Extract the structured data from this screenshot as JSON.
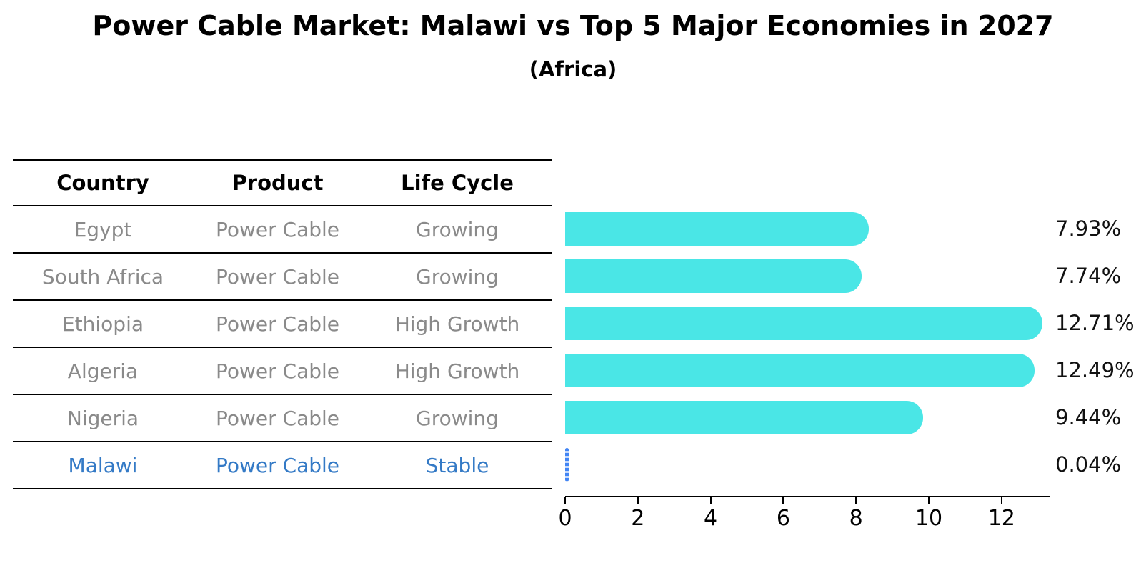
{
  "title": "Power Cable Market: Malawi vs Top 5 Major Economies in 2027",
  "subtitle": "(Africa)",
  "table": {
    "headers": {
      "country": "Country",
      "product": "Product",
      "life_cycle": "Life Cycle"
    },
    "rows": [
      {
        "country": "Egypt",
        "product": "Power Cable",
        "life_cycle": "Growing",
        "highlight": false
      },
      {
        "country": "South Africa",
        "product": "Power Cable",
        "life_cycle": "Growing",
        "highlight": false
      },
      {
        "country": "Ethiopia",
        "product": "Power Cable",
        "life_cycle": "High Growth",
        "highlight": false
      },
      {
        "country": "Algeria",
        "product": "Power Cable",
        "life_cycle": "High Growth",
        "highlight": false
      },
      {
        "country": "Nigeria",
        "product": "Power Cable",
        "life_cycle": "Growing",
        "highlight": false
      },
      {
        "country": "Malawi",
        "product": "Power Cable",
        "life_cycle": "Stable",
        "highlight": true
      }
    ]
  },
  "chart_data": {
    "type": "bar",
    "orientation": "horizontal",
    "title": "Power Cable Market: Malawi vs Top 5 Major Economies in 2027 (Africa)",
    "categories": [
      "Egypt",
      "South Africa",
      "Ethiopia",
      "Algeria",
      "Nigeria",
      "Malawi"
    ],
    "values": [
      7.93,
      7.74,
      12.71,
      12.49,
      9.44,
      0.04
    ],
    "value_labels": [
      "7.93%",
      "7.74%",
      "12.71%",
      "12.49%",
      "9.44%",
      "0.04%"
    ],
    "x_ticks": [
      0,
      2,
      4,
      6,
      8,
      10,
      12
    ],
    "xlim": [
      0,
      13.34
    ],
    "xlabel": "",
    "ylabel": "",
    "grid": false,
    "legend": false,
    "bar_color": "#4AE6E6",
    "highlight_bar_color": "#4285F4",
    "highlight_text_color": "#347AC6"
  }
}
